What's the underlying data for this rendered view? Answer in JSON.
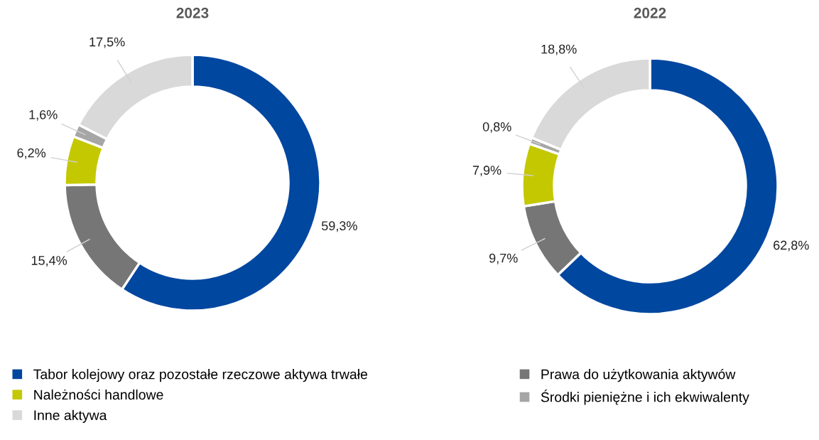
{
  "chart_data": [
    {
      "type": "donut",
      "title": "2023",
      "categories": [
        "Tabor kolejowy oraz pozostałe rzeczowe aktywa trwałe",
        "Prawa do użytkowania aktywów",
        "Należności handlowe",
        "Środki pieniężne i ich ekwiwalenty",
        "Inne aktywa"
      ],
      "values": [
        59.3,
        15.4,
        6.2,
        1.6,
        17.5
      ],
      "value_labels": [
        "59,3%",
        "15,4%",
        "6,2%",
        "1,6%",
        "17,5%"
      ],
      "colors": [
        "#0047a0",
        "#767676",
        "#c4c800",
        "#a6a6a6",
        "#d9d9d9"
      ],
      "legend": "bottom"
    },
    {
      "type": "donut",
      "title": "2022",
      "values": [
        62.8,
        9.7,
        7.9,
        0.8,
        18.8
      ],
      "value_labels": [
        "62,8%",
        "9,7%",
        "7,9%",
        "0,8%",
        "18,8%"
      ],
      "colors": [
        "#0047a0",
        "#767676",
        "#c4c800",
        "#a6a6a6",
        "#d9d9d9"
      ]
    }
  ]
}
